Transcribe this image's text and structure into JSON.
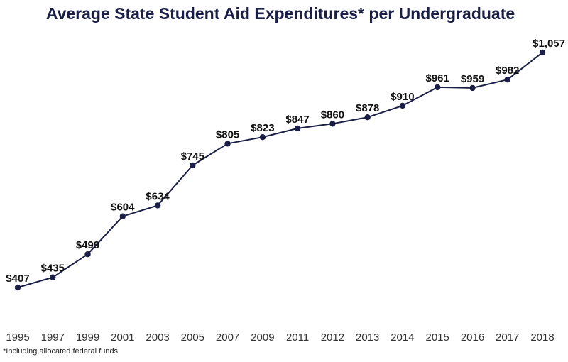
{
  "chart_data": {
    "type": "line",
    "title": "Average State Student Aid Expenditures* per Undergraduate",
    "xlabel": "",
    "ylabel": "",
    "ylim": [
      407,
      1057
    ],
    "grid": false,
    "categories": [
      "1995",
      "1997",
      "1999",
      "2001",
      "2003",
      "2005",
      "2007",
      "2009",
      "2011",
      "2012",
      "2013",
      "2014",
      "2015",
      "2016",
      "2017",
      "2018"
    ],
    "values": [
      407,
      435,
      499,
      604,
      634,
      745,
      805,
      823,
      847,
      860,
      878,
      910,
      961,
      959,
      982,
      1057
    ],
    "data_labels": [
      "$407",
      "$435",
      "$499",
      "$604",
      "$634",
      "$745",
      "$805",
      "$823",
      "$847",
      "$860",
      "$878",
      "$910",
      "$961",
      "$959",
      "$982",
      "$1,057"
    ],
    "line_color": "#1b1f45",
    "marker_color": "#1b1f45"
  },
  "footnote": "*Including allocated federal funds"
}
